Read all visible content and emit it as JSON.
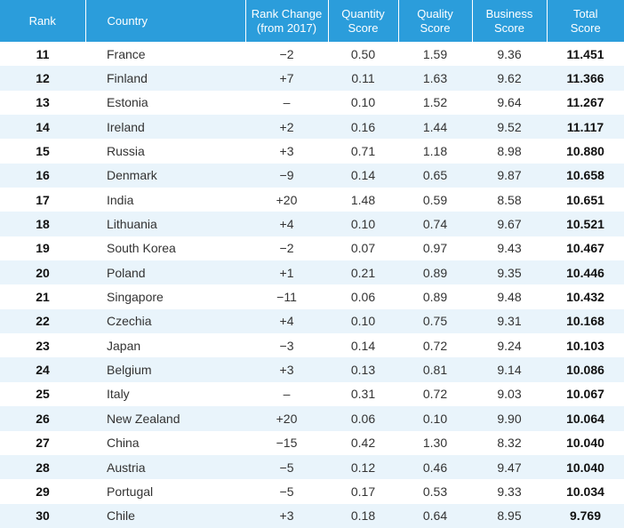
{
  "headers": {
    "rank": "Rank",
    "country": "Country",
    "rank_change_1": "Rank Change",
    "rank_change_2": "(from 2017)",
    "quantity_1": "Quantity",
    "quantity_2": "Score",
    "quality_1": "Quality",
    "quality_2": "Score",
    "business_1": "Business",
    "business_2": "Score",
    "total_1": "Total",
    "total_2": "Score"
  },
  "rows": [
    {
      "rank": "11",
      "country": "France",
      "change": "−2",
      "quantity": "0.50",
      "quality": "1.59",
      "business": "9.36",
      "total": "11.451"
    },
    {
      "rank": "12",
      "country": "Finland",
      "change": "+7",
      "quantity": "0.11",
      "quality": "1.63",
      "business": "9.62",
      "total": "11.366"
    },
    {
      "rank": "13",
      "country": "Estonia",
      "change": "–",
      "quantity": "0.10",
      "quality": "1.52",
      "business": "9.64",
      "total": "11.267"
    },
    {
      "rank": "14",
      "country": "Ireland",
      "change": "+2",
      "quantity": "0.16",
      "quality": "1.44",
      "business": "9.52",
      "total": "11.117"
    },
    {
      "rank": "15",
      "country": "Russia",
      "change": "+3",
      "quantity": "0.71",
      "quality": "1.18",
      "business": "8.98",
      "total": "10.880"
    },
    {
      "rank": "16",
      "country": "Denmark",
      "change": "−9",
      "quantity": "0.14",
      "quality": "0.65",
      "business": "9.87",
      "total": "10.658"
    },
    {
      "rank": "17",
      "country": "India",
      "change": "+20",
      "quantity": "1.48",
      "quality": "0.59",
      "business": "8.58",
      "total": "10.651"
    },
    {
      "rank": "18",
      "country": "Lithuania",
      "change": "+4",
      "quantity": "0.10",
      "quality": "0.74",
      "business": "9.67",
      "total": "10.521"
    },
    {
      "rank": "19",
      "country": "South Korea",
      "change": "−2",
      "quantity": "0.07",
      "quality": "0.97",
      "business": "9.43",
      "total": "10.467"
    },
    {
      "rank": "20",
      "country": "Poland",
      "change": "+1",
      "quantity": "0.21",
      "quality": "0.89",
      "business": "9.35",
      "total": "10.446"
    },
    {
      "rank": "21",
      "country": "Singapore",
      "change": "−11",
      "quantity": "0.06",
      "quality": "0.89",
      "business": "9.48",
      "total": "10.432"
    },
    {
      "rank": "22",
      "country": "Czechia",
      "change": "+4",
      "quantity": "0.10",
      "quality": "0.75",
      "business": "9.31",
      "total": "10.168"
    },
    {
      "rank": "23",
      "country": "Japan",
      "change": "−3",
      "quantity": "0.14",
      "quality": "0.72",
      "business": "9.24",
      "total": "10.103"
    },
    {
      "rank": "24",
      "country": "Belgium",
      "change": "+3",
      "quantity": "0.13",
      "quality": "0.81",
      "business": "9.14",
      "total": "10.086"
    },
    {
      "rank": "25",
      "country": "Italy",
      "change": "–",
      "quantity": "0.31",
      "quality": "0.72",
      "business": "9.03",
      "total": "10.067"
    },
    {
      "rank": "26",
      "country": "New Zealand",
      "change": "+20",
      "quantity": "0.06",
      "quality": "0.10",
      "business": "9.90",
      "total": "10.064"
    },
    {
      "rank": "27",
      "country": "China",
      "change": "−15",
      "quantity": "0.42",
      "quality": "1.30",
      "business": "8.32",
      "total": "10.040"
    },
    {
      "rank": "28",
      "country": "Austria",
      "change": "−5",
      "quantity": "0.12",
      "quality": "0.46",
      "business": "9.47",
      "total": "10.040"
    },
    {
      "rank": "29",
      "country": "Portugal",
      "change": "−5",
      "quantity": "0.17",
      "quality": "0.53",
      "business": "9.33",
      "total": "10.034"
    },
    {
      "rank": "30",
      "country": "Chile",
      "change": "+3",
      "quantity": "0.18",
      "quality": "0.64",
      "business": "8.95",
      "total": "9.769"
    }
  ]
}
